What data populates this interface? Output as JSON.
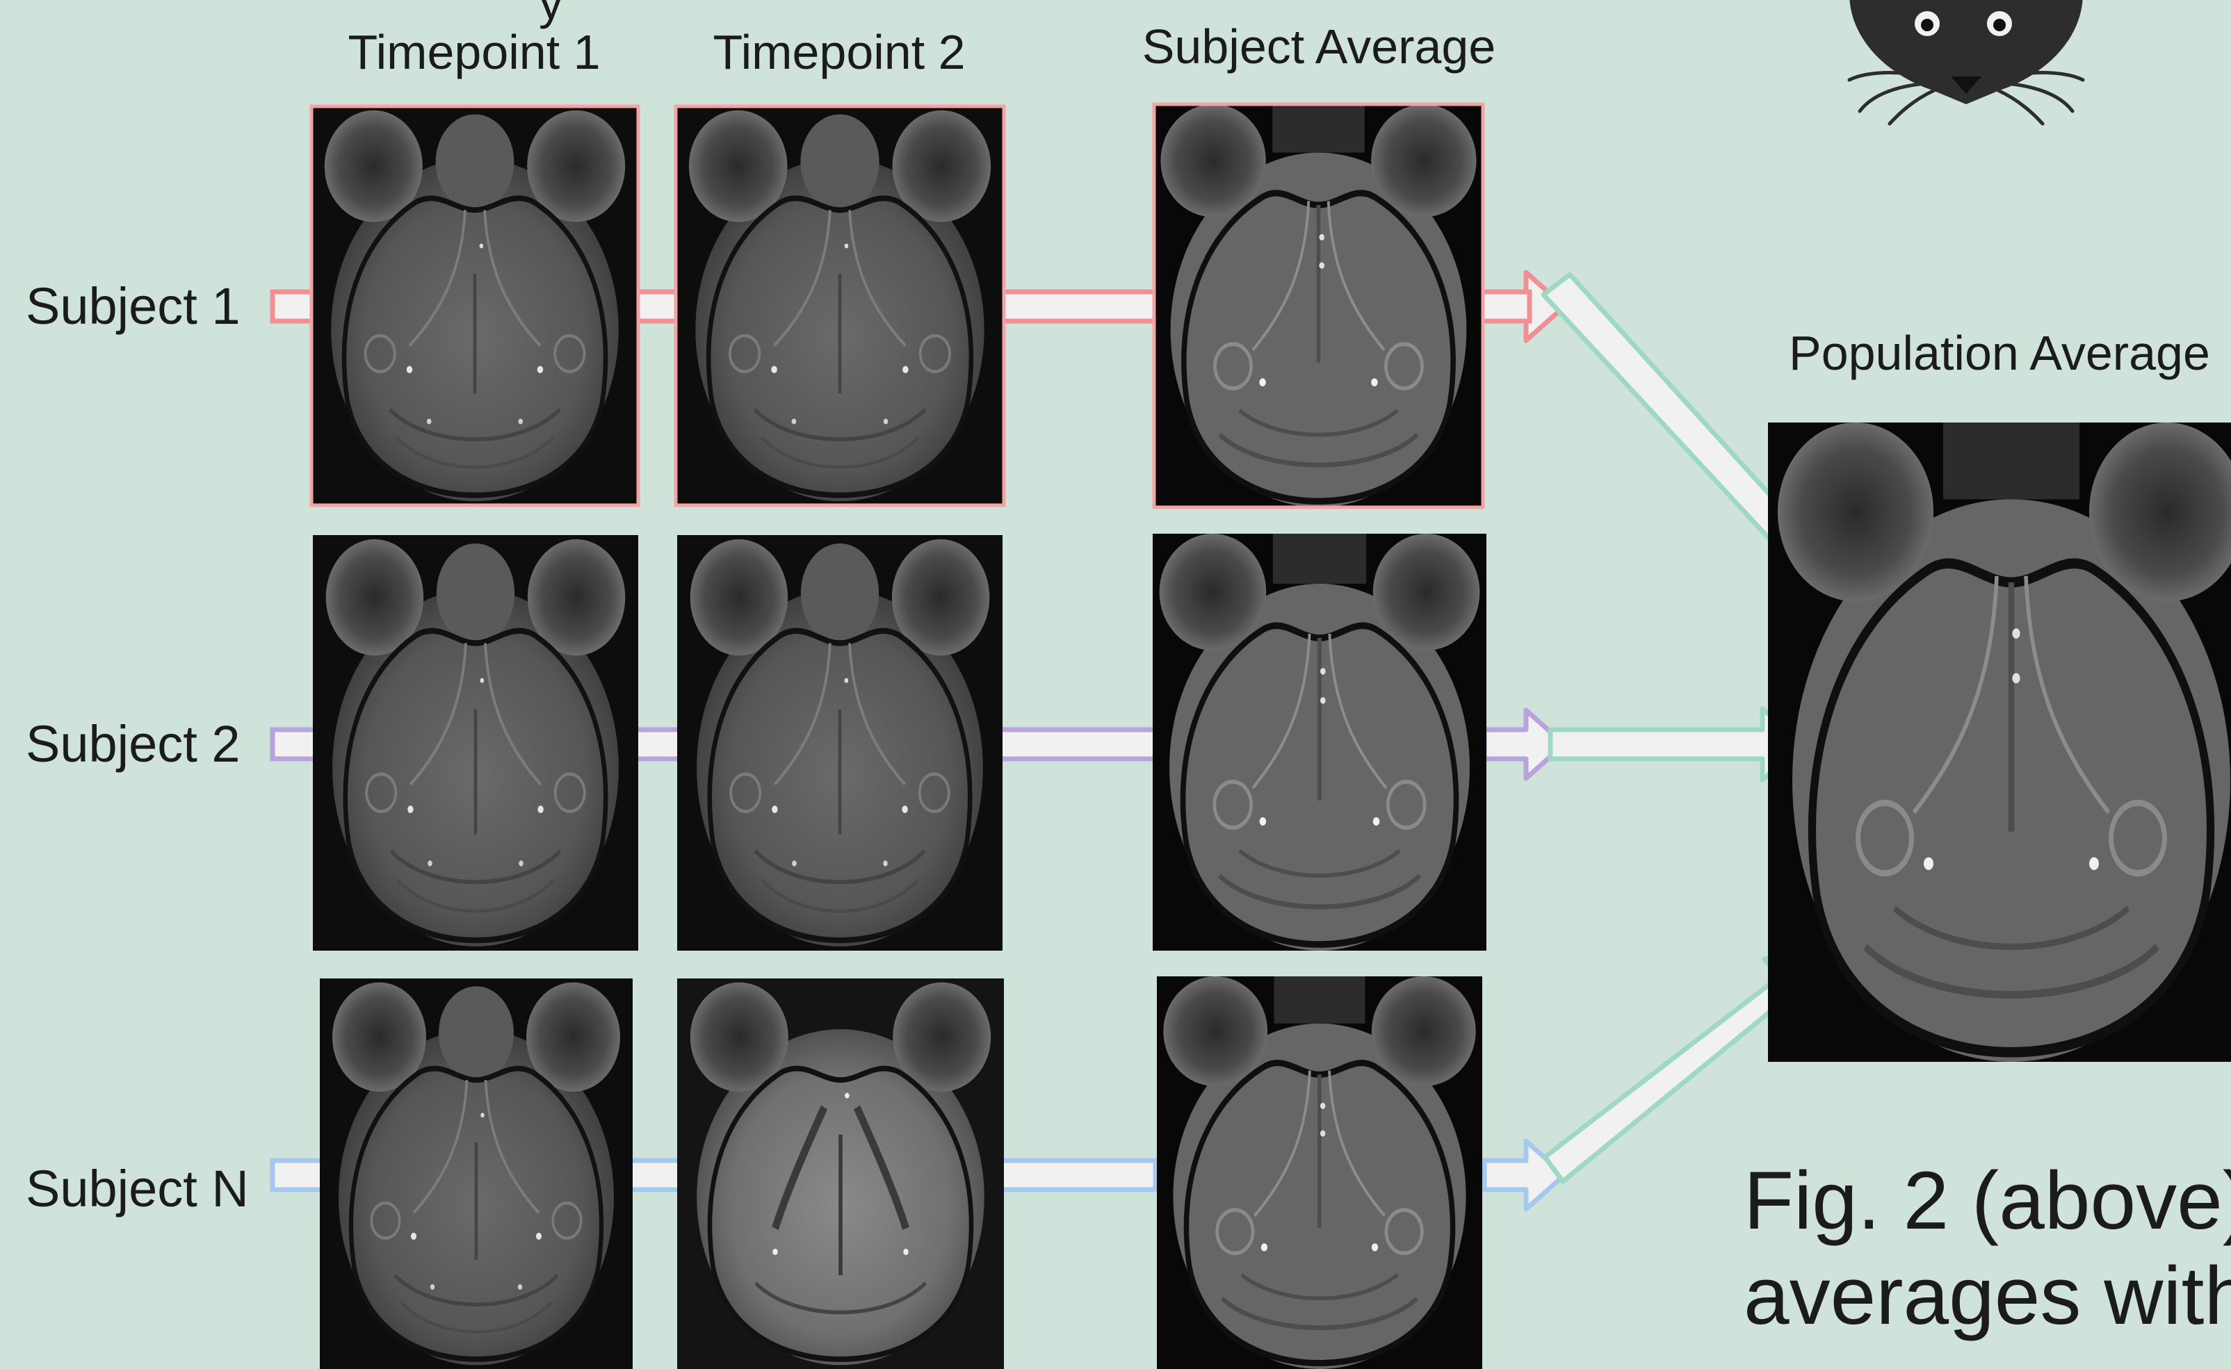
{
  "figure": {
    "cut_title_fragment": "y",
    "column_headers": [
      "Timepoint 1",
      "Timepoint 2",
      "Subject Average"
    ],
    "row_labels": [
      "Subject 1",
      "Subject 2",
      "Subject N"
    ],
    "population_label": "Population Average",
    "caption_line1": "Fig. 2 (above)",
    "caption_line2": "averages with"
  },
  "colors": {
    "background": "#cfe3db",
    "subject_1_arrow": "#f08f94",
    "subject_2_arrow": "#b9a3dc",
    "subject_n_arrow": "#a7c8ee",
    "population_arrow": "#9fd8c4",
    "arrow_fill": "#f1f1f1",
    "scan_border": "#f3a3a3"
  },
  "icons": {
    "top_right": "mouse-face-icon",
    "scan_image": "mri-brain-scan-image"
  }
}
